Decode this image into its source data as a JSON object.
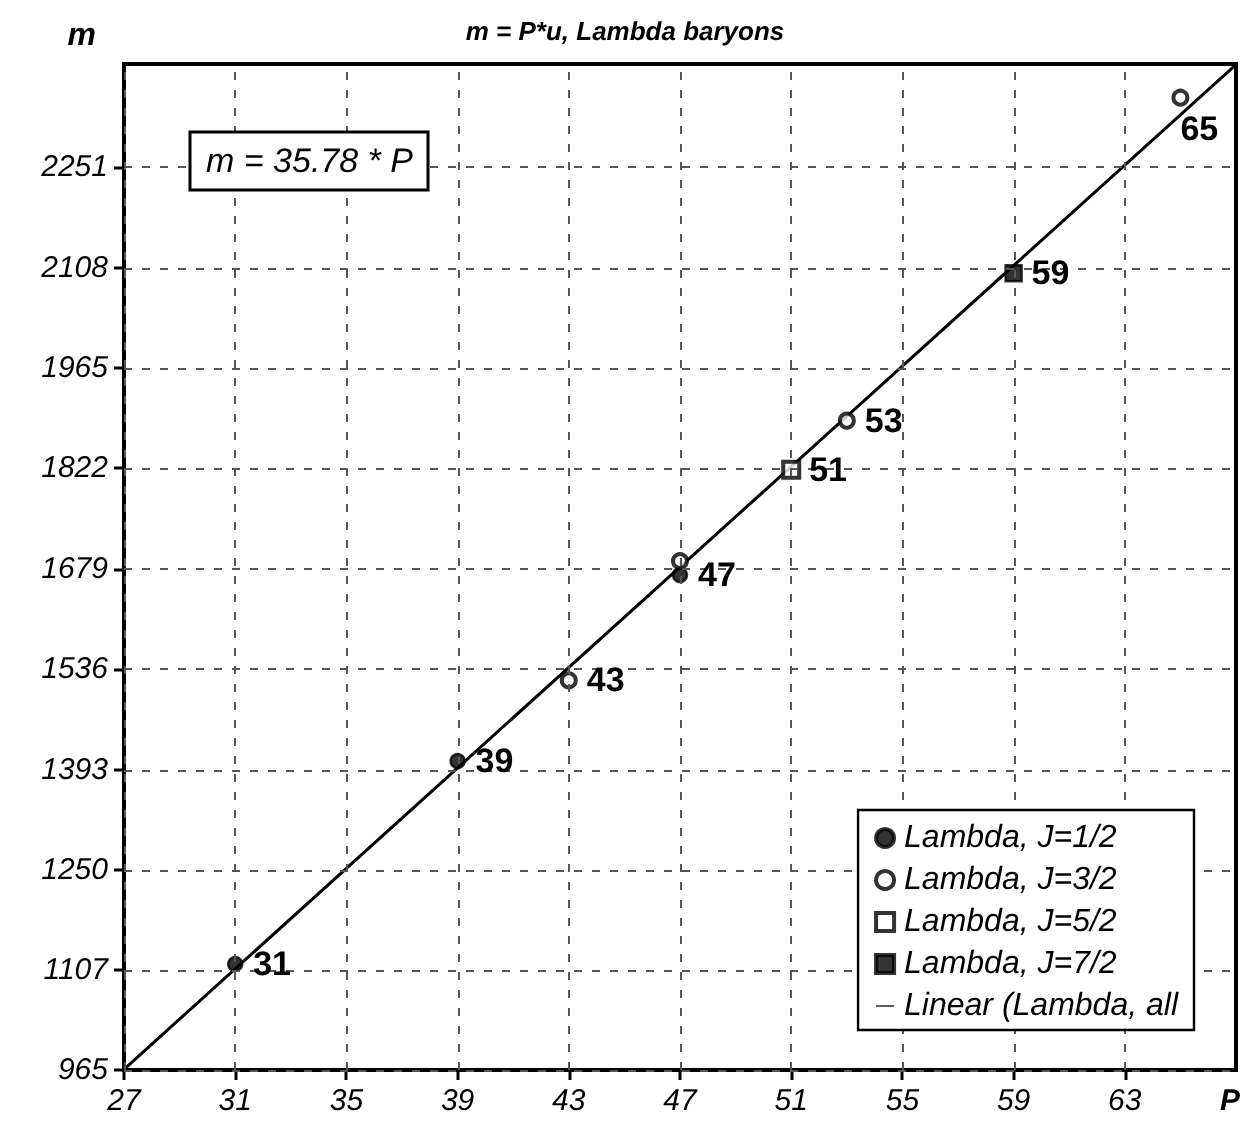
{
  "chart_data": {
    "type": "scatter",
    "title": "m = P*u, Lambda baryons",
    "xlabel": "P",
    "ylabel": "m",
    "annotations": [
      "m = 35.78 * P",
      {
        "text": "31",
        "x": 31,
        "y": 1116
      },
      {
        "text": "39",
        "x": 39,
        "y": 1405
      },
      {
        "text": "47",
        "x": 47,
        "y": 1670
      },
      {
        "text": "43",
        "x": 43,
        "y": 1520
      },
      {
        "text": "53",
        "x": 53,
        "y": 1890
      },
      {
        "text": "65",
        "x": 65,
        "y": 2350
      },
      {
        "text": "51",
        "x": 51,
        "y": 1820
      },
      {
        "text": "59",
        "x": 59,
        "y": 2100
      }
    ],
    "xlim": [
      27,
      67
    ],
    "xticks": [
      27,
      31,
      35,
      39,
      43,
      47,
      51,
      55,
      59,
      63
    ],
    "ylim": [
      965,
      2398
    ],
    "yticks": [
      965,
      1107,
      1250,
      1393,
      1536,
      1679,
      1822,
      1965,
      2108,
      2251
    ],
    "grid": true,
    "legend": "bottom right",
    "series": [
      {
        "name": "Lambda, J=1/2",
        "color": "#000000",
        "marker": "circle",
        "x": [
          31,
          39,
          47
        ],
        "values": [
          1116,
          1405,
          1670
        ]
      },
      {
        "name": "Lambda, J=3/2",
        "color": "#000000",
        "marker": "circle-open",
        "x": [
          43,
          47,
          53,
          65
        ],
        "values": [
          1520,
          1690,
          1890,
          2350
        ]
      },
      {
        "name": "Lambda, J=5/2",
        "color": "#000000",
        "marker": "square-open",
        "x": [
          51
        ],
        "values": [
          1820
        ]
      },
      {
        "name": "Lambda, J=7/2",
        "color": "#000000",
        "marker": "square",
        "x": [
          59
        ],
        "values": [
          2100
        ]
      },
      {
        "name": "Linear (Lambda, all",
        "type": "line",
        "color": "#000000",
        "marker": "none",
        "line_style": "solid",
        "x": [
          27,
          67
        ],
        "values": [
          966,
          2397
        ]
      }
    ]
  }
}
